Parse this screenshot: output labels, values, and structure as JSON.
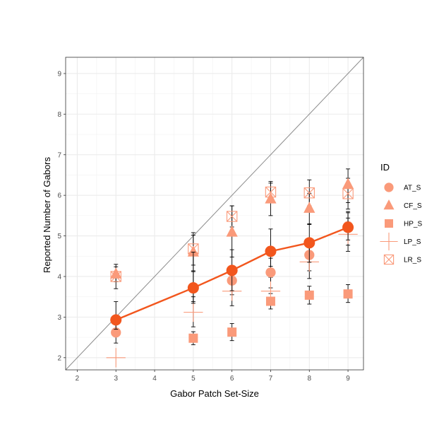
{
  "chart_data": {
    "type": "scatter",
    "xlabel": "Gabor Patch Set-Size",
    "ylabel": "Reported Number of Gabors",
    "xlim": [
      1.7,
      9.4
    ],
    "ylim": [
      1.7,
      9.4
    ],
    "xticks": [
      2,
      3,
      4,
      5,
      6,
      7,
      8,
      9
    ],
    "yticks": [
      2,
      3,
      4,
      5,
      6,
      7,
      8,
      9
    ],
    "x_tick_labels": [
      "2",
      "3",
      "4",
      "5",
      "6",
      "7",
      "8",
      "9"
    ],
    "y_tick_labels": [
      "2",
      "3",
      "4",
      "5",
      "6",
      "7",
      "8",
      "9"
    ],
    "grid": true,
    "identity_line": true,
    "legend": {
      "title": "ID",
      "position": "right"
    },
    "series": [
      {
        "name": "AT_S",
        "shape": "circle",
        "color": "#fa9a7a",
        "points": [
          {
            "x": 3,
            "y": 2.62,
            "err": [
              2.36,
              2.86
            ]
          },
          {
            "x": 5,
            "y": 3.73,
            "err": [
              3.38,
              4.12
            ]
          },
          {
            "x": 6,
            "y": 3.9,
            "err": [
              3.55,
              4.25
            ]
          },
          {
            "x": 7,
            "y": 4.1,
            "err": [
              3.72,
              4.45
            ]
          },
          {
            "x": 8,
            "y": 4.53,
            "err": [
              4.14,
              4.86
            ]
          },
          {
            "x": 9,
            "y": 5.24,
            "err": [
              4.77,
              5.6
            ]
          }
        ]
      },
      {
        "name": "CF_S",
        "shape": "triangle",
        "color": "#fa9a7a",
        "points": [
          {
            "x": 3,
            "y": 4.06,
            "err": [
              3.87,
              4.24
            ]
          },
          {
            "x": 5,
            "y": 4.6,
            "err": [
              4.14,
              5.02
            ]
          },
          {
            "x": 6,
            "y": 5.09,
            "err": [
              4.48,
              5.74
            ]
          },
          {
            "x": 7,
            "y": 5.91,
            "err": [
              5.5,
              6.3
            ]
          },
          {
            "x": 8,
            "y": 5.68,
            "err": [
              5.28,
              6.05
            ]
          },
          {
            "x": 9,
            "y": 6.27,
            "err": [
              5.82,
              6.65
            ]
          }
        ]
      },
      {
        "name": "HP_S",
        "shape": "square",
        "color": "#fa9a7a",
        "points": [
          {
            "x": 5,
            "y": 2.48,
            "err": [
              2.32,
              2.64
            ]
          },
          {
            "x": 6,
            "y": 2.63,
            "err": [
              2.42,
              2.84
            ]
          },
          {
            "x": 7,
            "y": 3.39,
            "err": [
              3.2,
              3.58
            ]
          },
          {
            "x": 8,
            "y": 3.54,
            "err": [
              3.32,
              3.76
            ]
          },
          {
            "x": 9,
            "y": 3.57,
            "err": [
              3.36,
              3.8
            ]
          }
        ]
      },
      {
        "name": "LP_S",
        "shape": "plus",
        "color": "#fa9a7a",
        "points": [
          {
            "x": 3,
            "y": 2.0,
            "err": null
          },
          {
            "x": 5,
            "y": 3.12,
            "err": [
              2.76,
              3.5
            ]
          },
          {
            "x": 6,
            "y": 3.64,
            "err": [
              3.28,
              4.0
            ]
          },
          {
            "x": 7,
            "y": 3.64,
            "err": [
              3.3,
              3.98
            ]
          },
          {
            "x": 8,
            "y": 4.36,
            "err": [
              3.95,
              4.76
            ]
          },
          {
            "x": 9,
            "y": 5.04,
            "err": [
              4.62,
              5.44
            ]
          }
        ]
      },
      {
        "name": "LR_S",
        "shape": "square-x",
        "color": "#fa9a7a",
        "points": [
          {
            "x": 3,
            "y": 4.0,
            "err": [
              3.7,
              4.3
            ]
          },
          {
            "x": 5,
            "y": 4.68,
            "err": [
              4.28,
              5.08
            ]
          },
          {
            "x": 6,
            "y": 5.48,
            "err": [
              5.22,
              5.74
            ]
          },
          {
            "x": 7,
            "y": 6.08,
            "err": [
              5.84,
              6.34
            ]
          },
          {
            "x": 8,
            "y": 6.06,
            "err": [
              5.74,
              6.38
            ]
          },
          {
            "x": 9,
            "y": 6.04,
            "err": [
              5.66,
              6.42
            ]
          }
        ]
      }
    ],
    "mean_series": {
      "color": "#f2561d",
      "x": [
        3,
        5,
        6,
        7,
        8,
        9
      ],
      "y": [
        2.93,
        3.72,
        4.15,
        4.62,
        4.83,
        5.21
      ],
      "err": [
        [
          2.7,
          3.38
        ],
        [
          3.34,
          4.6
        ],
        [
          3.65,
          4.66
        ],
        [
          4.25,
          5.17
        ],
        [
          4.35,
          5.3
        ],
        [
          4.9,
          5.57
        ]
      ]
    }
  }
}
